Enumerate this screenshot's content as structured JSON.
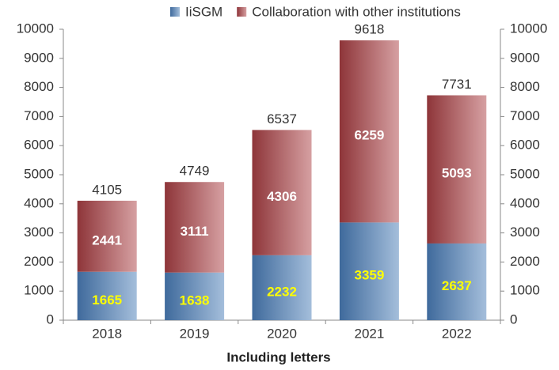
{
  "chart_data": {
    "type": "stacked_bar",
    "x_label": "Including letters",
    "categories": [
      "2018",
      "2019",
      "2020",
      "2021",
      "2022"
    ],
    "series": [
      {
        "name": "IiSGM",
        "color": "#4a76a8",
        "values": [
          1665,
          1638,
          2232,
          3359,
          2637
        ]
      },
      {
        "name": "Collaboration with other institutions",
        "color": "#a9494d",
        "values": [
          2441,
          3111,
          4306,
          6259,
          5093
        ]
      }
    ],
    "totals": [
      4105,
      4749,
      6537,
      9618,
      7731
    ],
    "ylim": [
      0,
      10000
    ],
    "yticks": [
      0,
      1000,
      2000,
      3000,
      4000,
      5000,
      6000,
      7000,
      8000,
      9000,
      10000
    ],
    "y2lim": [
      0,
      10000
    ],
    "y2ticks": [
      0,
      1000,
      2000,
      3000,
      4000,
      5000,
      6000,
      7000,
      8000,
      9000,
      10000
    ],
    "legend": "top"
  }
}
